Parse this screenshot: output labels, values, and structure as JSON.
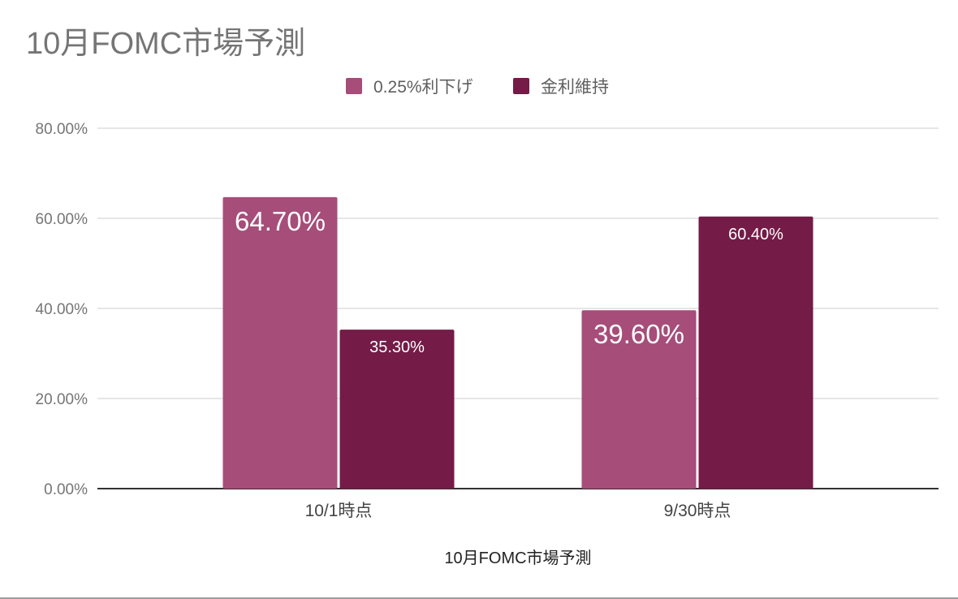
{
  "chart_data": {
    "type": "bar",
    "title": "10月FOMC市場予測",
    "xlabel": "10月FOMC市場予測",
    "ylabel": "",
    "categories": [
      "10/1時点",
      "9/30時点"
    ],
    "series": [
      {
        "name": "0.25%利下げ",
        "values": [
          64.7,
          39.6
        ],
        "labels": [
          "64.70%",
          "39.60%"
        ],
        "color": "#a64d79"
      },
      {
        "name": "金利維持",
        "values": [
          35.3,
          60.4
        ],
        "labels": [
          "35.30%",
          "60.40%"
        ],
        "color": "#741b47"
      }
    ],
    "ylim": [
      0,
      80
    ],
    "yticks": [
      0,
      20,
      40,
      60,
      80
    ],
    "ytick_labels": [
      "0.00%",
      "20.00%",
      "40.00%",
      "60.00%",
      "80.00%"
    ],
    "grid": true,
    "legend_position": "top-center"
  }
}
